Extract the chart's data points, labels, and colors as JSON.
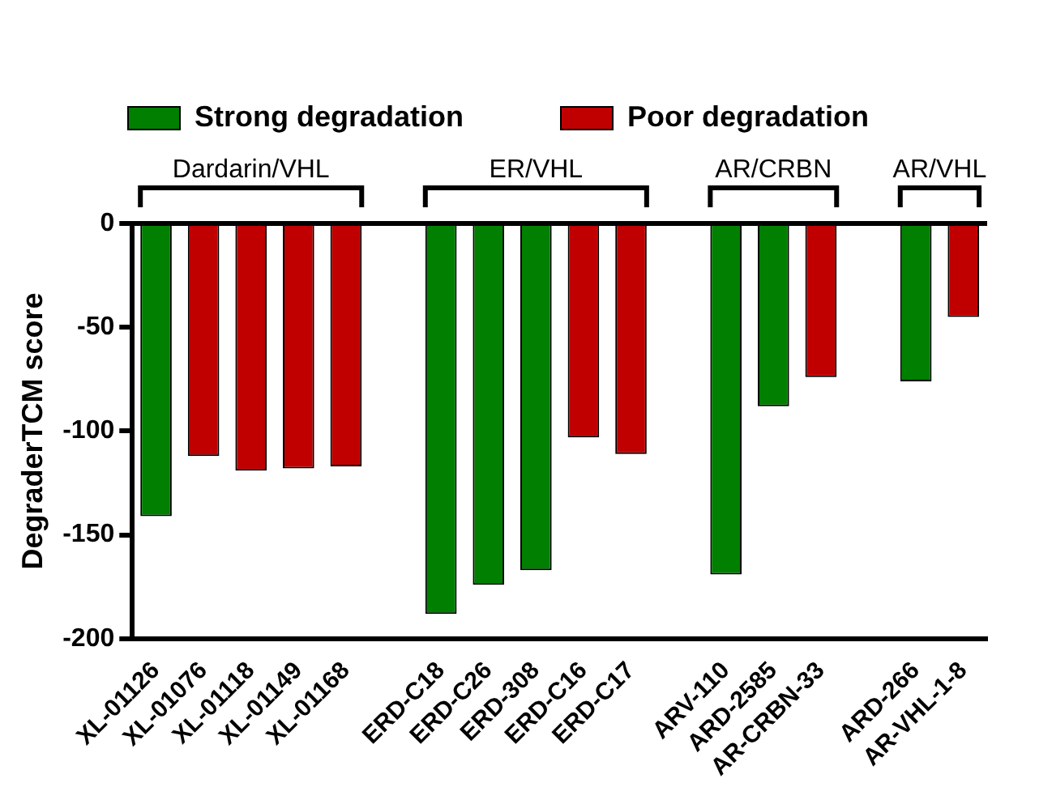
{
  "chart_data": {
    "type": "bar",
    "ylabel": "DegraderTCM score",
    "categories": [
      "XL-01126",
      "XL-01076",
      "XL-01118",
      "XL-01149",
      "XL-01168",
      null,
      "ERD-C18",
      "ERD-C26",
      "ERD-308",
      "ERD-C16",
      "ERD-C17",
      null,
      "ARV-110",
      "ARD-2585",
      "AR-CRBN-33",
      null,
      "ARD-266",
      "AR-VHL-1-8"
    ],
    "series": [
      {
        "name": "Strong degradation",
        "color": "#007f00",
        "values": [
          -141,
          null,
          null,
          null,
          null,
          null,
          -188,
          -174,
          -167,
          null,
          null,
          null,
          -169,
          -88,
          null,
          null,
          -76,
          null
        ]
      },
      {
        "name": "Poor degradation",
        "color": "#c00000",
        "values": [
          null,
          -112,
          -119,
          -118,
          -117,
          null,
          null,
          null,
          null,
          -103,
          -111,
          null,
          null,
          null,
          -74,
          null,
          null,
          -45
        ]
      }
    ],
    "annotations": [
      "Dardarin/VHL",
      "ER/VHL",
      "AR/CRBN",
      "AR/VHL"
    ],
    "ylim": [
      -200,
      0
    ],
    "yticks": [
      0,
      -50,
      -100,
      -150,
      -200
    ],
    "grid": false,
    "legend": "top"
  }
}
